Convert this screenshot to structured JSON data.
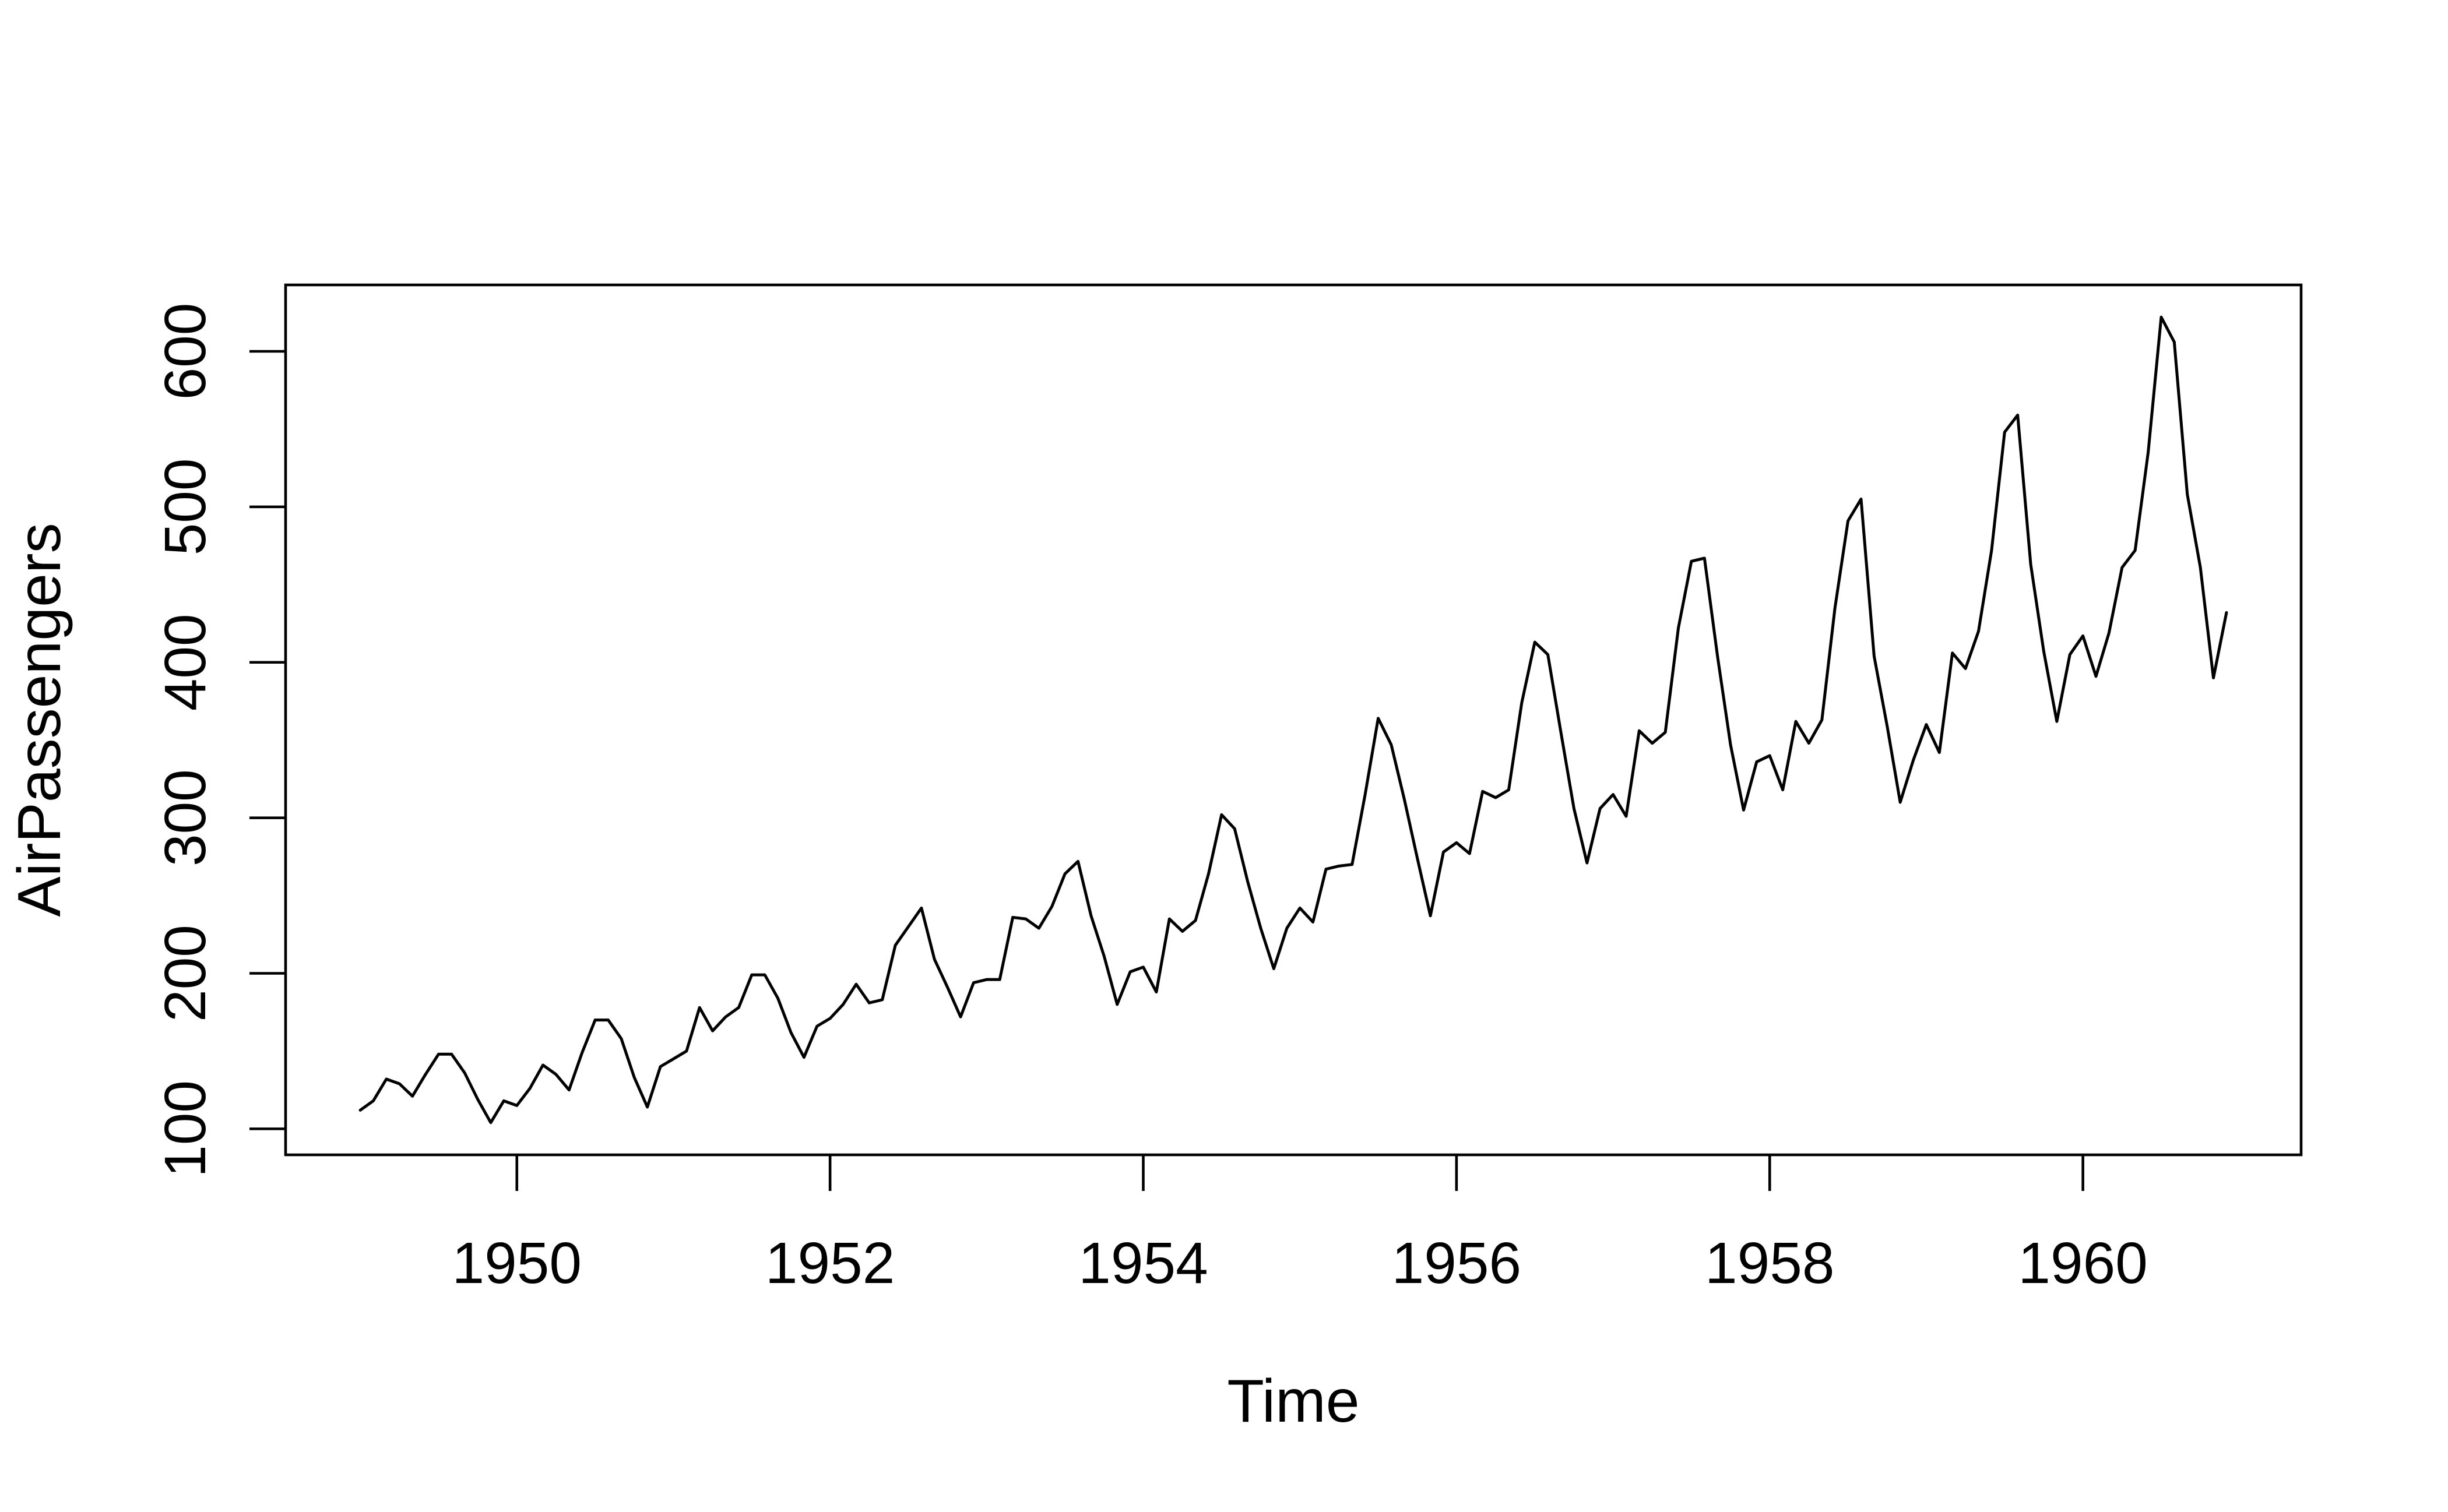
{
  "chart_data": {
    "type": "line",
    "title": "",
    "xlabel": "Time",
    "ylabel": "AirPassengers",
    "line_color": "#000000",
    "background_color": "#ffffff",
    "grid": false,
    "legend_position": null,
    "x_tick_labels": [
      1950,
      1952,
      1954,
      1956,
      1958,
      1960
    ],
    "y_tick_labels": [
      100,
      200,
      300,
      400,
      500,
      600
    ],
    "xlim": [
      1948.5233333,
      1961.3933333
    ],
    "ylim": [
      83.28,
      642.72
    ],
    "series": [
      {
        "name": "AirPassengers",
        "start_year": 1949,
        "frequency": 12,
        "values": [
          112,
          118,
          132,
          129,
          121,
          135,
          148,
          148,
          136,
          119,
          104,
          118,
          115,
          126,
          141,
          135,
          125,
          149,
          170,
          170,
          158,
          133,
          114,
          140,
          145,
          150,
          178,
          163,
          172,
          178,
          199,
          199,
          184,
          162,
          146,
          166,
          171,
          180,
          193,
          181,
          183,
          218,
          230,
          242,
          209,
          191,
          172,
          194,
          196,
          196,
          236,
          235,
          229,
          243,
          264,
          272,
          237,
          211,
          180,
          201,
          204,
          188,
          235,
          227,
          234,
          264,
          302,
          293,
          259,
          229,
          203,
          229,
          242,
          233,
          267,
          269,
          270,
          315,
          364,
          347,
          312,
          274,
          237,
          278,
          284,
          277,
          317,
          313,
          318,
          374,
          413,
          405,
          355,
          306,
          271,
          306,
          315,
          301,
          356,
          348,
          355,
          422,
          465,
          467,
          404,
          347,
          305,
          336,
          340,
          318,
          362,
          348,
          363,
          435,
          491,
          505,
          404,
          359,
          310,
          337,
          360,
          342,
          406,
          396,
          420,
          472,
          548,
          559,
          463,
          407,
          362,
          405,
          417,
          391,
          419,
          461,
          472,
          535,
          622,
          606,
          508,
          461,
          390,
          432
        ]
      }
    ]
  }
}
